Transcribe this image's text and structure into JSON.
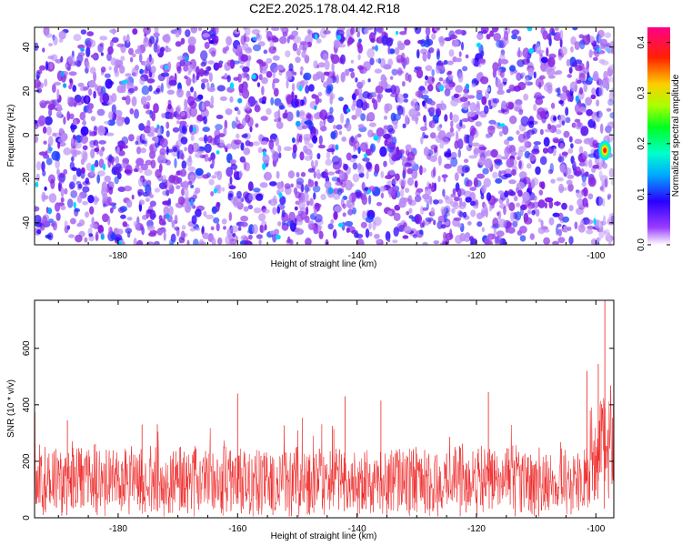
{
  "title": "C2E2.2025.178.04.42.R18",
  "colors": {
    "spectrogram_background": "#8a2be2",
    "snr_line": "#ee2222",
    "axis": "#000000"
  },
  "chart_data": [
    {
      "type": "heatmap",
      "title": "C2E2.2025.178.04.42.R18",
      "xlabel": "Height of straight line (km)",
      "ylabel": "Frequency (Hz)",
      "xlim": [
        -194,
        -97
      ],
      "ylim": [
        -50,
        49
      ],
      "xticks": [
        -180,
        -160,
        -140,
        -120,
        -100
      ],
      "xtick_labels": [
        "-180",
        "-160",
        "-140",
        "-120",
        "-100"
      ],
      "yticks": [
        40,
        20,
        0,
        -20,
        -40
      ],
      "ytick_labels": [
        "40",
        "20",
        "0",
        "-20",
        "-40"
      ],
      "background_level": 0.05,
      "hotspot": {
        "x": -98.5,
        "y": -7,
        "peak": 0.42
      },
      "colorbar": {
        "label": "Normalized spectral amplitude",
        "range": [
          0.0,
          0.43
        ],
        "ticks": [
          0.0,
          0.1,
          0.2,
          0.3,
          0.4
        ],
        "tick_labels": [
          "0.0",
          "0.1",
          "0.2",
          "0.3",
          "0.4"
        ],
        "colormap": "rainbow (white-violet-blue-cyan-green-yellow-red-magenta)"
      }
    },
    {
      "type": "line",
      "xlabel": "Height of straight line (km)",
      "ylabel": "SNR (10 * v/v)",
      "xlim": [
        -194,
        -97
      ],
      "ylim": [
        0,
        770
      ],
      "xticks": [
        -180,
        -160,
        -140,
        -120,
        -100
      ],
      "xtick_labels": [
        "-180",
        "-160",
        "-140",
        "-120",
        "-100"
      ],
      "yticks": [
        0,
        200,
        400,
        600
      ],
      "ytick_labels": [
        "0",
        "200",
        "400",
        "600"
      ],
      "baseline_mean": 130,
      "baseline_spread": 110,
      "notable_peaks": [
        {
          "x": -188.5,
          "y": 345
        },
        {
          "x": -176,
          "y": 330
        },
        {
          "x": -160,
          "y": 440
        },
        {
          "x": -142,
          "y": 430
        },
        {
          "x": -136,
          "y": 415
        },
        {
          "x": -118,
          "y": 445
        },
        {
          "x": -101.5,
          "y": 520
        },
        {
          "x": -99.6,
          "y": 545
        },
        {
          "x": -98.5,
          "y": 770
        }
      ]
    }
  ]
}
